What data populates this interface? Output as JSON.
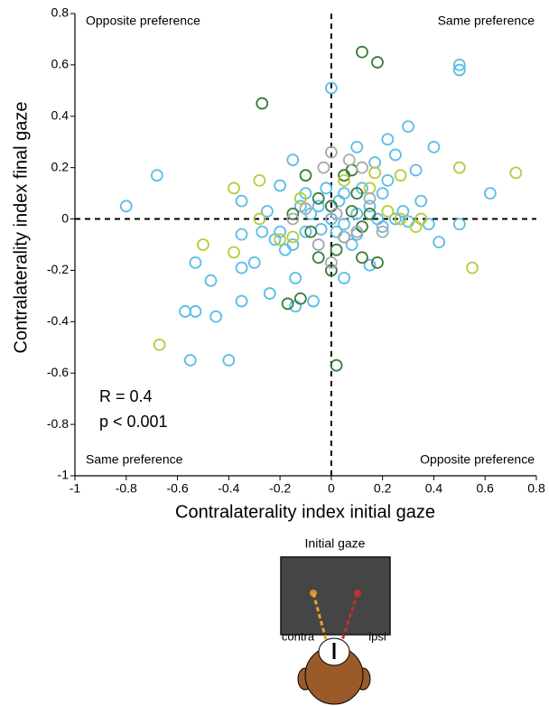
{
  "chart_data": {
    "type": "scatter",
    "xlabel": "Contralaterality index initial gaze",
    "ylabel": "Contralaterality index final gaze",
    "xlim": [
      -1,
      0.8
    ],
    "ylim": [
      -1,
      0.8
    ],
    "xticks": [
      -1,
      -0.8,
      -0.6,
      -0.4,
      -0.2,
      0,
      0.2,
      0.4,
      0.6,
      0.8
    ],
    "yticks": [
      -1,
      -0.8,
      -0.6,
      -0.4,
      -0.2,
      0,
      0.2,
      0.4,
      0.6,
      0.8
    ],
    "hlines": [
      0
    ],
    "vlines": [
      0
    ],
    "annotations": [
      "Opposite preference",
      "Same preference",
      "Same preference",
      "Opposite preference",
      "R = 0.4",
      "p < 0.001"
    ],
    "series": [
      {
        "color": "#5bbde8",
        "x": [
          0.5,
          0.5,
          0,
          -0.8,
          -0.68,
          -0.4,
          -0.55,
          -0.57,
          -0.53,
          -0.45,
          -0.47,
          -0.53,
          -0.35,
          -0.35,
          -0.3,
          -0.24,
          -0.14,
          -0.14,
          -0.07,
          0.3,
          0.22,
          0.4,
          0.62,
          0.5,
          0.42,
          0.35,
          0.33,
          0.25,
          0.17,
          0.1,
          0.15,
          0.05,
          -0.35,
          -0.35,
          -0.27,
          -0.22,
          -0.2,
          -0.15,
          -0.1,
          -0.05,
          0,
          0.05,
          0.1,
          0.15,
          0.2,
          0.25,
          -0.1,
          -0.05,
          0.02,
          0.08,
          0.2,
          0.28,
          -0.15,
          -0.12,
          0.12,
          0.22,
          -0.02,
          -0.08,
          0.3,
          0.05,
          -0.18,
          0.18,
          -0.25,
          -0.2,
          0.38,
          0.03,
          -0.04,
          0.1
        ],
        "values": [
          0.6,
          0.58,
          0.51,
          0.05,
          0.17,
          -0.55,
          -0.55,
          -0.36,
          -0.36,
          -0.38,
          -0.24,
          -0.17,
          -0.32,
          -0.19,
          -0.17,
          -0.29,
          -0.34,
          -0.23,
          -0.32,
          0.36,
          0.31,
          0.28,
          0.1,
          -0.02,
          -0.09,
          0.07,
          0.19,
          0.25,
          0.22,
          0.28,
          -0.18,
          -0.23,
          0.07,
          -0.06,
          -0.05,
          -0.08,
          0.13,
          0.23,
          0.1,
          0.05,
          0,
          0.1,
          0.02,
          0.05,
          0.1,
          0,
          -0.05,
          -0.1,
          -0.05,
          -0.1,
          -0.03,
          0.03,
          -0.1,
          0.05,
          0.12,
          0.15,
          0.12,
          0.02,
          -0.01,
          -0.02,
          -0.12,
          0,
          0.03,
          -0.05,
          -0.02,
          0.07,
          -0.04,
          -0.06
        ]
      },
      {
        "color": "#3b7d3b",
        "x": [
          0.12,
          0.18,
          -0.27,
          0.02,
          -0.17,
          -0.12,
          0,
          0.12,
          0.18,
          -0.05,
          0.05,
          0.08,
          -0.1,
          0.1,
          0,
          0.05,
          -0.05,
          0.15,
          0.02,
          -0.08,
          0.12,
          -0.15,
          0.08
        ],
        "values": [
          0.65,
          0.61,
          0.45,
          -0.57,
          -0.33,
          -0.31,
          -0.2,
          -0.15,
          -0.17,
          -0.15,
          0.17,
          0.19,
          0.17,
          0.1,
          0.05,
          -0.07,
          0.08,
          0.02,
          -0.12,
          -0.05,
          -0.03,
          0.02,
          0.03
        ]
      },
      {
        "color": "#b7cc3c",
        "x": [
          -0.67,
          -0.5,
          -0.38,
          -0.38,
          -0.28,
          -0.28,
          0.5,
          0.72,
          0.55,
          0.33,
          0.27,
          0.35,
          0.17,
          -0.15,
          -0.2,
          -0.12,
          0.22,
          0.27,
          0.15,
          0.05
        ],
        "values": [
          -0.49,
          -0.1,
          -0.13,
          0.12,
          0.15,
          0,
          0.2,
          0.18,
          -0.19,
          -0.03,
          0.17,
          0,
          0.18,
          -0.07,
          -0.08,
          0.08,
          0.03,
          0,
          0.12,
          0.15
        ]
      },
      {
        "color": "#aaaaaa",
        "x": [
          0,
          0.07,
          -0.05,
          0,
          0.05,
          -0.1,
          0.15,
          0.1,
          -0.03,
          0.12,
          0.2,
          -0.15,
          0.02
        ],
        "values": [
          0.26,
          0.23,
          -0.1,
          -0.17,
          -0.07,
          0.04,
          0.08,
          -0.05,
          0.2,
          0.2,
          -0.05,
          0,
          0.02
        ]
      }
    ]
  },
  "illustration": {
    "title": "Initial gaze",
    "left_label": "contra",
    "right_label": "ipsi"
  }
}
